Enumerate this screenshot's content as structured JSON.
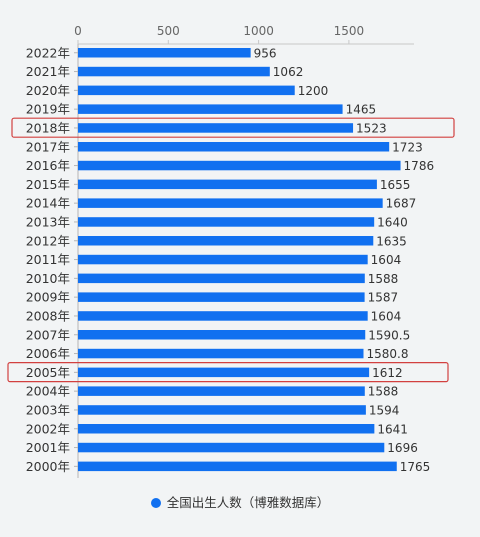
{
  "chart_data": {
    "type": "bar",
    "orientation": "horizontal",
    "categories": [
      "2022年",
      "2021年",
      "2020年",
      "2019年",
      "2018年",
      "2017年",
      "2016年",
      "2015年",
      "2014年",
      "2013年",
      "2012年",
      "2011年",
      "2010年",
      "2009年",
      "2008年",
      "2007年",
      "2006年",
      "2005年",
      "2004年",
      "2003年",
      "2002年",
      "2001年",
      "2000年"
    ],
    "value_labels": [
      "956",
      "1062",
      "1200",
      "1465",
      "1523",
      "1723",
      "1786",
      "1655",
      "1687",
      "1640",
      "1635",
      "1604",
      "1588",
      "1587",
      "1604",
      "1590.5",
      "1580.8",
      "1612",
      "1588",
      "1594",
      "1641",
      "1696",
      "1765"
    ],
    "series": [
      {
        "name": "全国出生人数（博雅数据库）",
        "values": [
          956,
          1062,
          1200,
          1465,
          1523,
          1723,
          1786,
          1655,
          1687,
          1640,
          1635,
          1604,
          1588,
          1587,
          1604,
          1590.5,
          1580.8,
          1612,
          1588,
          1594,
          1641,
          1696,
          1765
        ]
      }
    ],
    "xticks": [
      "0",
      "500",
      "1000",
      "1500"
    ],
    "xlim": [
      0,
      1850
    ],
    "grid": false,
    "legend_position": "bottom",
    "highlighted_categories": [
      "2018年",
      "2005年"
    ],
    "bar_color": "#1170f0",
    "highlight_color": "#d2403f"
  }
}
